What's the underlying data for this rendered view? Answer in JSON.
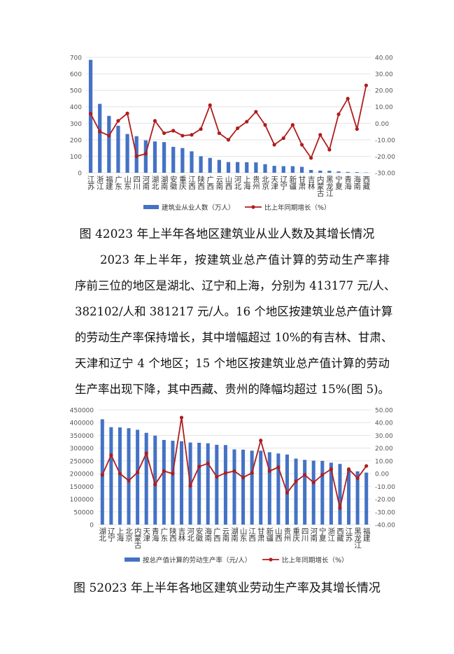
{
  "figure4": {
    "caption": "图 42023 年上半年各地区建筑业从业人数及其增长情况",
    "chart_data": {
      "type": "bar+line",
      "categories": [
        "江苏",
        "浙江",
        "福建",
        "广东",
        "山东",
        "四川",
        "河南",
        "湖北",
        "湖南",
        "安徽",
        "重庆",
        "江西",
        "陕西",
        "广西",
        "云南",
        "山西",
        "河北",
        "上海",
        "贵州",
        "北京",
        "天津",
        "辽宁",
        "新疆",
        "甘肃",
        "吉林",
        "内蒙古",
        "黑龙江",
        "宁夏",
        "青海",
        "海南",
        "西藏"
      ],
      "series": [
        {
          "name": "建筑业从业人数（万人）",
          "type": "bar",
          "axis": "left",
          "color": "#4472c4",
          "values": [
            685,
            418,
            345,
            285,
            235,
            222,
            197,
            190,
            186,
            157,
            150,
            130,
            100,
            90,
            78,
            65,
            65,
            64,
            63,
            52,
            42,
            40,
            40,
            36,
            17,
            13,
            12,
            8,
            5,
            4,
            2
          ]
        },
        {
          "name": "比上年同期增长（%）",
          "type": "line",
          "axis": "right",
          "color": "#b01c1c",
          "values": [
            5.8,
            -5,
            -7.5,
            1.5,
            6,
            -20,
            -18.5,
            1.5,
            -6,
            -4.5,
            -7.5,
            -7,
            -3.5,
            11,
            -6,
            -10,
            -3,
            1,
            7,
            -1,
            -13,
            -9,
            -1,
            -13,
            -21,
            -7,
            -16,
            5.5,
            15,
            -3.5,
            23
          ]
        }
      ],
      "y_left": {
        "range": [
          0,
          700
        ],
        "ticks": [
          "0",
          "100",
          "200",
          "300",
          "400",
          "500",
          "600",
          "700"
        ]
      },
      "y_right": {
        "range": [
          -30,
          40
        ],
        "ticks": [
          "-30.00",
          "-20.00",
          "-10.00",
          "0.00",
          "10.00",
          "20.00",
          "30.00",
          "40.00"
        ]
      },
      "grid": true,
      "legend": "bottom"
    }
  },
  "paragraph": {
    "lines": [
      "2023 年上半年，按建筑业总产值计算的劳动生产率排",
      "序前三位的地区是湖北、辽宁和上海，分别为 413177 元/人、",
      "382102/人和 381217 元/人。16 个地区按建筑业总产值计算",
      "的劳动生产率保持增长，其中增幅超过 10%的有吉林、甘肃、",
      "天津和辽宁 4 个地区；15 个地区按建筑业总产值计算的劳动",
      "生产率出现下降，其中西藏、贵州的降幅均超过 15%(图 5)。"
    ]
  },
  "figure5": {
    "caption": "图 52023 年上半年各地区建筑业劳动生产率及其增长情况",
    "chart_data": {
      "type": "bar+line",
      "categories": [
        "湖北",
        "辽宁",
        "上海",
        "北京",
        "内蒙古",
        "天津",
        "青海",
        "广东",
        "陕西",
        "吉林",
        "河北",
        "安徽",
        "海南",
        "广西",
        "云南",
        "湖南",
        "山东",
        "江西",
        "甘肃",
        "新疆",
        "山西",
        "贵州",
        "重庆",
        "四川",
        "河南",
        "宁夏",
        "浙江",
        "西藏",
        "江苏",
        "黑龙江",
        "福建"
      ],
      "series": [
        {
          "name": "按总产值计算的劳动生产率（元/人）",
          "type": "bar",
          "axis": "left",
          "color": "#4472c4",
          "values": [
            413177,
            382102,
            381217,
            378000,
            372000,
            360000,
            349000,
            332000,
            329000,
            327000,
            322000,
            321000,
            319000,
            313000,
            312000,
            295000,
            294000,
            290000,
            290000,
            284000,
            279000,
            275000,
            259000,
            254000,
            251000,
            250000,
            243000,
            238000,
            215000,
            209000,
            204000
          ]
        },
        {
          "name": "比上年同期增长（%）",
          "type": "line",
          "axis": "right",
          "color": "#b01c1c",
          "values": [
            -1,
            14.5,
            0,
            -5.5,
            1,
            16,
            -8.5,
            2,
            0,
            44,
            -9.5,
            5.5,
            8,
            -2.5,
            0.5,
            2,
            -3,
            0.5,
            26,
            2,
            5,
            -15,
            -6,
            -1,
            -7,
            -1,
            3.5,
            -27,
            3.5,
            -3.5,
            6
          ]
        }
      ],
      "y_left": {
        "range": [
          0,
          450000
        ],
        "ticks": [
          "0",
          "50000",
          "100000",
          "150000",
          "200000",
          "250000",
          "300000",
          "350000",
          "400000",
          "450000"
        ]
      },
      "y_right": {
        "range": [
          -40,
          50
        ],
        "ticks": [
          "-40.00",
          "-30.00",
          "-20.00",
          "-10.00",
          "0.00",
          "10.00",
          "20.00",
          "30.00",
          "40.00",
          "50.00"
        ]
      },
      "grid": true,
      "legend": "bottom"
    }
  }
}
